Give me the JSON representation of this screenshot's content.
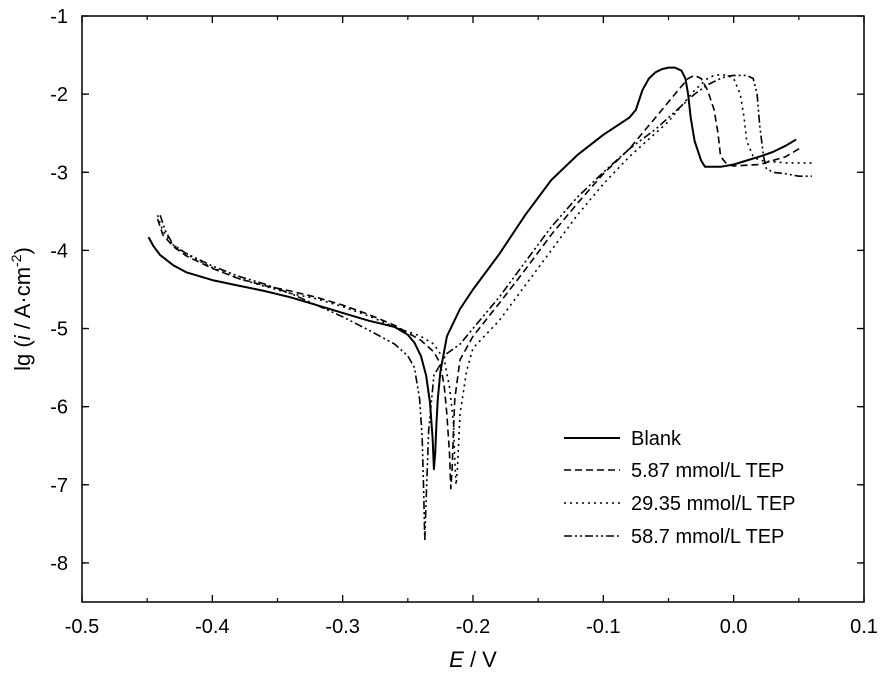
{
  "chart_data": {
    "type": "line",
    "xlabel_italic": "E",
    "xlabel_rest": " / V",
    "ylabel_pre": "lg (",
    "ylabel_italic": "i",
    "ylabel_mid": " / A·cm",
    "ylabel_sup": "-2",
    "ylabel_post": ")",
    "xlim": [
      -0.5,
      0.1
    ],
    "ylim": [
      -8.5,
      -1
    ],
    "xticks": [
      -0.5,
      -0.4,
      -0.3,
      -0.2,
      -0.1,
      0.0,
      0.1
    ],
    "xtick_labels": [
      "-0.5",
      "-0.4",
      "-0.3",
      "-0.2",
      "-0.1",
      "0.0",
      "0.1"
    ],
    "yticks": [
      -8,
      -7,
      -6,
      -5,
      -4,
      -3,
      -2,
      -1
    ],
    "ytick_labels": [
      "-8",
      "-7",
      "-6",
      "-5",
      "-4",
      "-3",
      "-2",
      "-1"
    ],
    "grid": false,
    "legend_position": "bottom-right",
    "series": [
      {
        "name": "Blank",
        "dash": "solid",
        "x": [
          -0.449,
          -0.445,
          -0.44,
          -0.43,
          -0.42,
          -0.4,
          -0.38,
          -0.36,
          -0.34,
          -0.32,
          -0.3,
          -0.28,
          -0.27,
          -0.26,
          -0.25,
          -0.245,
          -0.24,
          -0.236,
          -0.233,
          -0.231,
          -0.23,
          -0.229,
          -0.228,
          -0.227,
          -0.225,
          -0.22,
          -0.21,
          -0.2,
          -0.18,
          -0.16,
          -0.14,
          -0.12,
          -0.1,
          -0.08,
          -0.075,
          -0.07,
          -0.065,
          -0.06,
          -0.055,
          -0.05,
          -0.045,
          -0.04,
          -0.037,
          -0.035,
          -0.033,
          -0.03,
          -0.025,
          -0.022,
          -0.02,
          -0.01,
          0.0,
          0.01,
          0.02,
          0.03,
          0.04,
          0.048
        ],
        "y": [
          -3.83,
          -3.95,
          -4.06,
          -4.19,
          -4.28,
          -4.38,
          -4.45,
          -4.52,
          -4.6,
          -4.7,
          -4.8,
          -4.9,
          -4.94,
          -4.98,
          -5.08,
          -5.18,
          -5.35,
          -5.6,
          -5.95,
          -6.4,
          -6.8,
          -6.6,
          -6.2,
          -5.9,
          -5.55,
          -5.1,
          -4.75,
          -4.5,
          -4.05,
          -3.55,
          -3.1,
          -2.78,
          -2.52,
          -2.3,
          -2.2,
          -1.95,
          -1.8,
          -1.72,
          -1.68,
          -1.66,
          -1.66,
          -1.7,
          -1.8,
          -2.0,
          -2.3,
          -2.6,
          -2.85,
          -2.93,
          -2.93,
          -2.93,
          -2.9,
          -2.85,
          -2.8,
          -2.74,
          -2.66,
          -2.58
        ]
      },
      {
        "name": "5.87 mmol/L TEP",
        "dash": "dashed",
        "x": [
          -0.442,
          -0.438,
          -0.43,
          -0.42,
          -0.4,
          -0.38,
          -0.36,
          -0.34,
          -0.32,
          -0.3,
          -0.28,
          -0.26,
          -0.24,
          -0.23,
          -0.225,
          -0.222,
          -0.22,
          -0.218,
          -0.217,
          -0.216,
          -0.215,
          -0.214,
          -0.21,
          -0.2,
          -0.18,
          -0.16,
          -0.14,
          -0.12,
          -0.1,
          -0.08,
          -0.07,
          -0.06,
          -0.05,
          -0.04,
          -0.035,
          -0.03,
          -0.025,
          -0.02,
          -0.015,
          -0.012,
          -0.01,
          -0.005,
          0.0,
          0.02,
          0.04,
          0.052
        ],
        "y": [
          -3.6,
          -3.8,
          -3.95,
          -4.07,
          -4.23,
          -4.36,
          -4.45,
          -4.52,
          -4.6,
          -4.7,
          -4.82,
          -4.96,
          -5.15,
          -5.3,
          -5.45,
          -5.75,
          -6.1,
          -6.6,
          -7.05,
          -6.8,
          -6.3,
          -5.9,
          -5.4,
          -5.1,
          -4.68,
          -4.25,
          -3.8,
          -3.4,
          -3.02,
          -2.7,
          -2.5,
          -2.3,
          -2.1,
          -1.9,
          -1.8,
          -1.76,
          -1.8,
          -1.95,
          -2.2,
          -2.5,
          -2.8,
          -2.9,
          -2.92,
          -2.9,
          -2.8,
          -2.68
        ]
      },
      {
        "name": "29.35 mmol/L TEP",
        "dash": "dotted",
        "x": [
          -0.442,
          -0.438,
          -0.43,
          -0.42,
          -0.4,
          -0.38,
          -0.36,
          -0.34,
          -0.32,
          -0.3,
          -0.28,
          -0.26,
          -0.24,
          -0.23,
          -0.222,
          -0.218,
          -0.215,
          -0.214,
          -0.213,
          -0.212,
          -0.21,
          -0.205,
          -0.2,
          -0.18,
          -0.16,
          -0.14,
          -0.12,
          -0.1,
          -0.08,
          -0.06,
          -0.05,
          -0.04,
          -0.03,
          -0.02,
          -0.015,
          -0.01,
          -0.005,
          0.0,
          0.005,
          0.008,
          0.01,
          0.015,
          0.02,
          0.04,
          0.06
        ],
        "y": [
          -3.55,
          -3.75,
          -3.93,
          -4.05,
          -4.22,
          -4.36,
          -4.46,
          -4.55,
          -4.62,
          -4.72,
          -4.84,
          -4.98,
          -5.1,
          -5.2,
          -5.4,
          -5.75,
          -6.2,
          -6.7,
          -7.0,
          -6.8,
          -6.1,
          -5.55,
          -5.25,
          -4.9,
          -4.45,
          -4.0,
          -3.55,
          -3.15,
          -2.8,
          -2.5,
          -2.35,
          -2.15,
          -1.95,
          -1.8,
          -1.76,
          -1.75,
          -1.76,
          -1.8,
          -2.0,
          -2.3,
          -2.6,
          -2.8,
          -2.85,
          -2.88,
          -2.88
        ]
      },
      {
        "name": "58.7 mmol/L TEP",
        "dash": "dashdotdot",
        "x": [
          -0.44,
          -0.436,
          -0.43,
          -0.42,
          -0.4,
          -0.38,
          -0.36,
          -0.34,
          -0.32,
          -0.3,
          -0.28,
          -0.26,
          -0.25,
          -0.245,
          -0.241,
          -0.239,
          -0.238,
          -0.237,
          -0.236,
          -0.234,
          -0.23,
          -0.22,
          -0.21,
          -0.2,
          -0.18,
          -0.16,
          -0.14,
          -0.12,
          -0.1,
          -0.08,
          -0.06,
          -0.04,
          -0.03,
          -0.02,
          -0.01,
          -0.005,
          0.0,
          0.005,
          0.01,
          0.015,
          0.018,
          0.02,
          0.023,
          0.025,
          0.03,
          0.04,
          0.05,
          0.06
        ],
        "y": [
          -3.55,
          -3.75,
          -3.93,
          -4.04,
          -4.2,
          -4.33,
          -4.43,
          -4.55,
          -4.7,
          -4.85,
          -5.02,
          -5.2,
          -5.35,
          -5.5,
          -5.9,
          -6.4,
          -7.0,
          -7.72,
          -7.2,
          -6.3,
          -5.6,
          -5.32,
          -5.2,
          -5.0,
          -4.6,
          -4.15,
          -3.7,
          -3.32,
          -3.0,
          -2.7,
          -2.45,
          -2.15,
          -2.0,
          -1.88,
          -1.8,
          -1.77,
          -1.76,
          -1.76,
          -1.76,
          -1.8,
          -2.0,
          -2.4,
          -2.8,
          -2.95,
          -3.0,
          -3.02,
          -3.05,
          -3.05
        ]
      }
    ]
  }
}
